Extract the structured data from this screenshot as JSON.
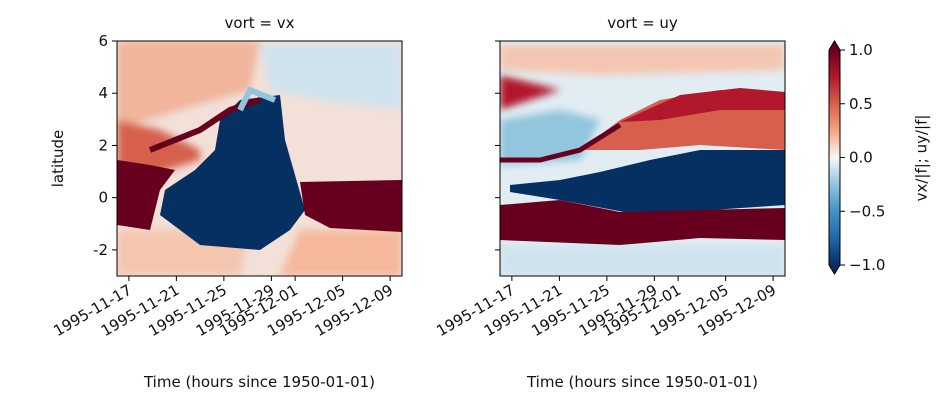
{
  "chart_data": [
    {
      "type": "heatmap",
      "title": "vort = vx",
      "xlabel": "Time (hours since 1950-01-01)",
      "ylabel": "latitude",
      "xlim": [
        "1995-11-16",
        "1995-12-10"
      ],
      "xticks": [
        "1995-11-17",
        "1995-11-21",
        "1995-11-25",
        "1995-11-29",
        "1995-12-01",
        "1995-12-05",
        "1995-12-09"
      ],
      "ylim": [
        -3,
        6
      ],
      "yticks": [
        -2,
        0,
        2,
        4,
        6
      ]
    },
    {
      "type": "heatmap",
      "title": "vort = uy",
      "xlabel": "Time (hours since 1950-01-01)",
      "xlim": [
        "1995-11-16",
        "1995-12-10"
      ],
      "xticks": [
        "1995-11-17",
        "1995-11-21",
        "1995-11-25",
        "1995-11-29",
        "1995-12-01",
        "1995-12-05",
        "1995-12-09"
      ],
      "ylim": [
        -3,
        6
      ],
      "yticks": [
        -2,
        0,
        2,
        4,
        6
      ]
    }
  ],
  "colorbar": {
    "label": "vx/|f|; uy/|f|",
    "lim": [
      -1,
      1
    ],
    "ticks": [
      {
        "value": -1,
        "label": "−1.0"
      },
      {
        "value": -0.5,
        "label": "−0.5"
      },
      {
        "value": 0,
        "label": "0.0"
      },
      {
        "value": 0.5,
        "label": "0.5"
      },
      {
        "value": 1,
        "label": "1.0"
      }
    ],
    "colors": [
      "#053061",
      "#2166ac",
      "#4393c3",
      "#92c5de",
      "#f7f7f7",
      "#f4a582",
      "#d6604d",
      "#b2182b",
      "#67001f"
    ]
  }
}
